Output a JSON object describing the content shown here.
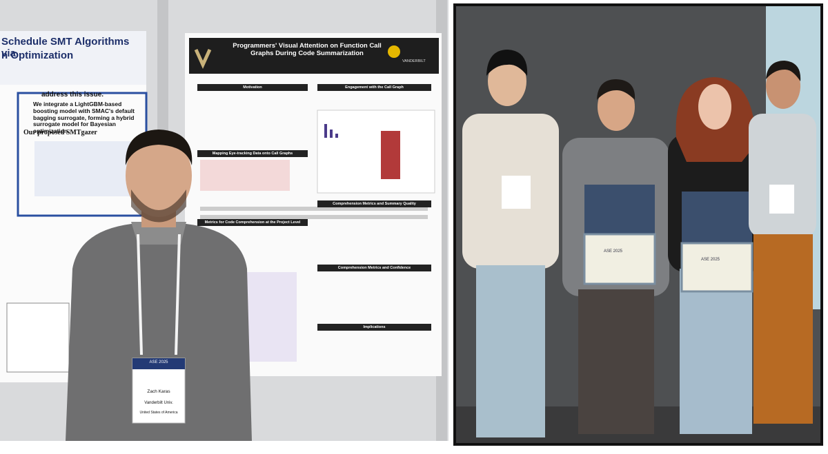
{
  "left_photo": {
    "poster_left": {
      "title": "Schedule SMT Algorithms via",
      "title_line2": "n Optimization",
      "text": "address this issue.",
      "bullet": "We integrate a LightGBM-based boosting model with SMAC's default bagging surrogate, forming a hybrid surrogate model for Bayesian optimization.",
      "subheading": "Our proposed SMTgazer"
    },
    "poster_main": {
      "title": "Programmers' Visual Attention on Function Call Graphs During Code Summarization",
      "logo": "VANDERBILT",
      "sections": [
        "Motivation",
        "Engagement with the Call Graph",
        "Mapping Eye-tracking Data onto Call Graphs",
        "Comprehension Metrics and Summary Quality",
        "Metrics for Code Comprehension at the Project Level",
        "Comprehension Metrics and Confidence",
        "Implications"
      ]
    },
    "badge": {
      "event": "ASE 2025",
      "name": "Zach Karas",
      "affiliation": "Vanderbilt Univ.",
      "country": "United States of America"
    }
  },
  "right_photo": {
    "certificates": [
      "ASE 2025",
      "ASE 2025"
    ]
  }
}
